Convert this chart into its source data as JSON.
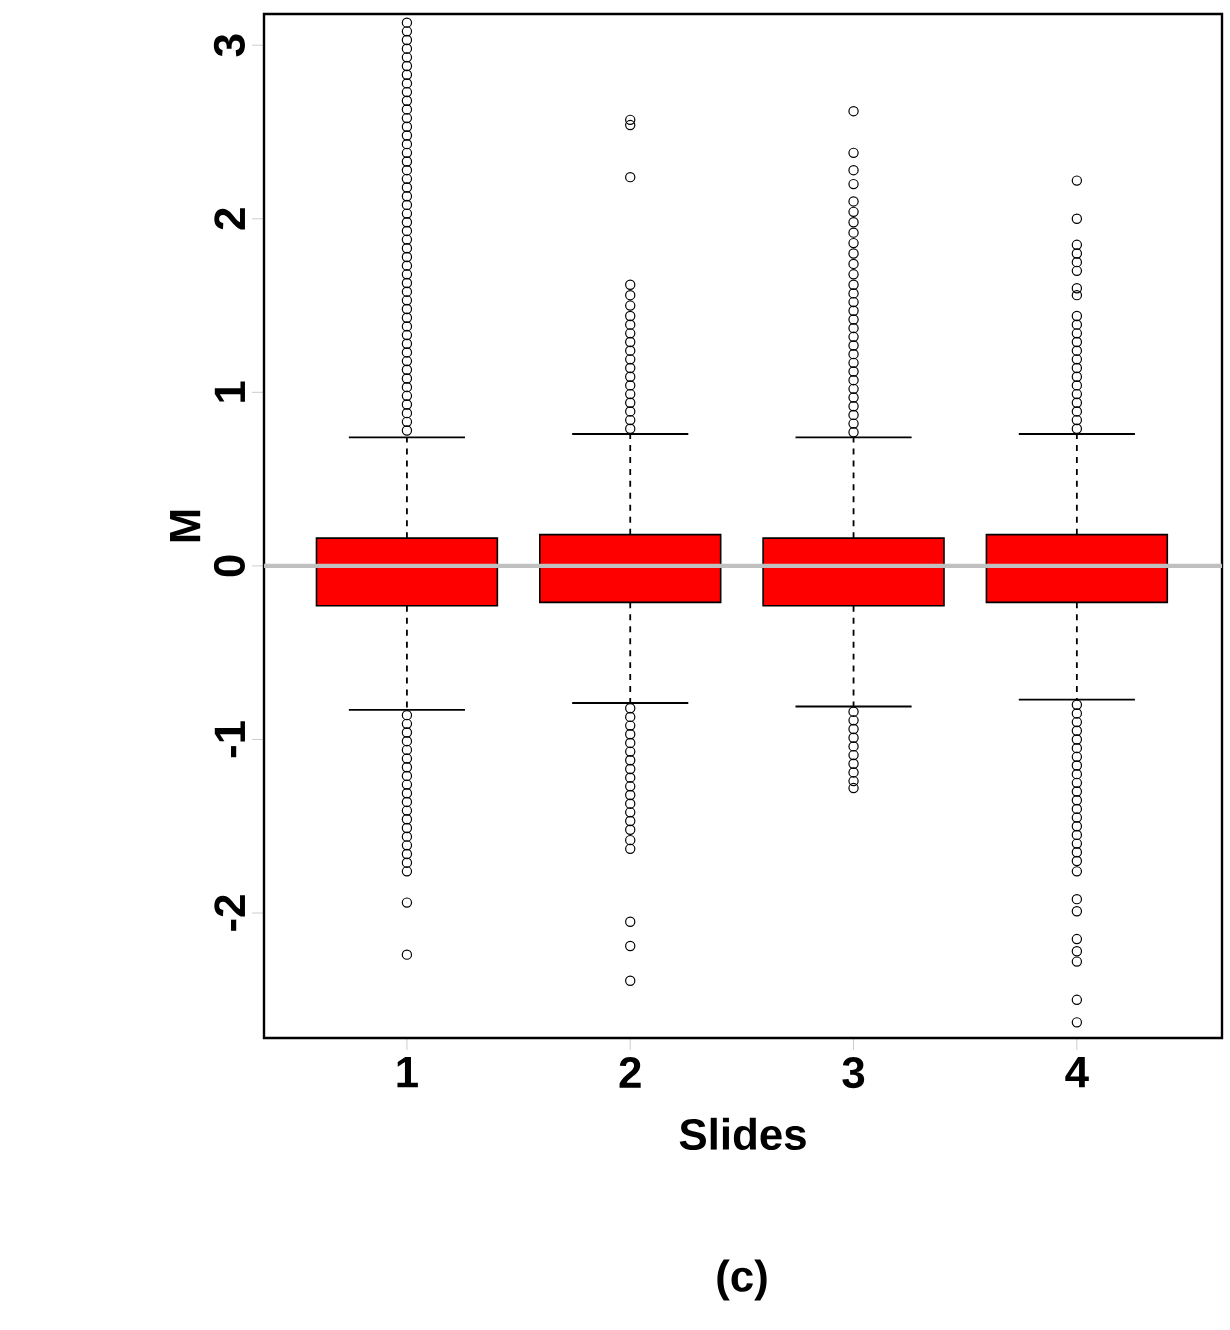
{
  "chart_data": {
    "type": "box",
    "xlabel": "Slides",
    "ylabel": "M",
    "annotations": [
      "(c)"
    ],
    "categories": [
      "1",
      "2",
      "3",
      "4"
    ],
    "color": "#ff0000",
    "marker": "circle",
    "ylim": [
      -2.72,
      3.18
    ],
    "yticks": [
      -2,
      -1,
      0,
      1,
      2,
      3
    ],
    "ref_lines": [
      {
        "axis": "y",
        "value": 0,
        "color": "#c0c0c0"
      }
    ],
    "boxes": [
      {
        "low": -0.83,
        "q1": -0.23,
        "median": 0,
        "q3": 0.16,
        "high": 0.74,
        "outliers": [
          0.78,
          0.83,
          0.88,
          0.93,
          0.98,
          1.03,
          1.08,
          1.13,
          1.18,
          1.23,
          1.28,
          1.33,
          1.38,
          1.43,
          1.48,
          1.53,
          1.58,
          1.63,
          1.68,
          1.73,
          1.78,
          1.83,
          1.88,
          1.93,
          1.98,
          2.03,
          2.08,
          2.13,
          2.18,
          2.23,
          2.28,
          2.33,
          2.38,
          2.43,
          2.48,
          2.53,
          2.58,
          2.63,
          2.68,
          2.73,
          2.78,
          2.83,
          2.88,
          2.93,
          2.98,
          3.03,
          3.08,
          3.13,
          -0.86,
          -0.91,
          -0.96,
          -1.01,
          -1.06,
          -1.11,
          -1.16,
          -1.21,
          -1.26,
          -1.31,
          -1.36,
          -1.41,
          -1.46,
          -1.51,
          -1.56,
          -1.61,
          -1.66,
          -1.71,
          -1.76,
          -1.94,
          -2.24
        ]
      },
      {
        "low": -0.79,
        "q1": -0.21,
        "median": 0,
        "q3": 0.18,
        "high": 0.76,
        "outliers": [
          0.79,
          0.84,
          0.89,
          0.94,
          0.99,
          1.04,
          1.09,
          1.14,
          1.19,
          1.24,
          1.29,
          1.34,
          1.39,
          1.44,
          1.5,
          1.56,
          1.62,
          2.24,
          2.54,
          2.57,
          -0.82,
          -0.87,
          -0.92,
          -0.97,
          -1.02,
          -1.07,
          -1.12,
          -1.17,
          -1.22,
          -1.27,
          -1.32,
          -1.37,
          -1.42,
          -1.47,
          -1.52,
          -1.58,
          -1.63,
          -2.05,
          -2.19,
          -2.39
        ]
      },
      {
        "low": -0.81,
        "q1": -0.23,
        "median": 0,
        "q3": 0.16,
        "high": 0.74,
        "outliers": [
          0.77,
          0.82,
          0.87,
          0.92,
          0.97,
          1.02,
          1.07,
          1.12,
          1.17,
          1.22,
          1.27,
          1.32,
          1.37,
          1.42,
          1.47,
          1.52,
          1.57,
          1.62,
          1.68,
          1.74,
          1.8,
          1.86,
          1.92,
          1.98,
          2.04,
          2.1,
          2.2,
          2.28,
          2.38,
          2.62,
          -0.84,
          -0.89,
          -0.94,
          -0.99,
          -1.04,
          -1.09,
          -1.14,
          -1.19,
          -1.24,
          -1.28
        ]
      },
      {
        "low": -0.77,
        "q1": -0.21,
        "median": 0,
        "q3": 0.18,
        "high": 0.76,
        "outliers": [
          0.79,
          0.84,
          0.89,
          0.94,
          0.99,
          1.04,
          1.09,
          1.14,
          1.19,
          1.24,
          1.29,
          1.34,
          1.39,
          1.44,
          1.56,
          1.6,
          1.7,
          1.75,
          1.8,
          1.85,
          2.0,
          2.22,
          -0.8,
          -0.85,
          -0.9,
          -0.95,
          -1.0,
          -1.05,
          -1.1,
          -1.15,
          -1.2,
          -1.25,
          -1.3,
          -1.35,
          -1.4,
          -1.45,
          -1.5,
          -1.55,
          -1.6,
          -1.65,
          -1.7,
          -1.76,
          -1.92,
          -1.99,
          -2.15,
          -2.22,
          -2.28,
          -2.5,
          -2.63
        ]
      }
    ]
  }
}
